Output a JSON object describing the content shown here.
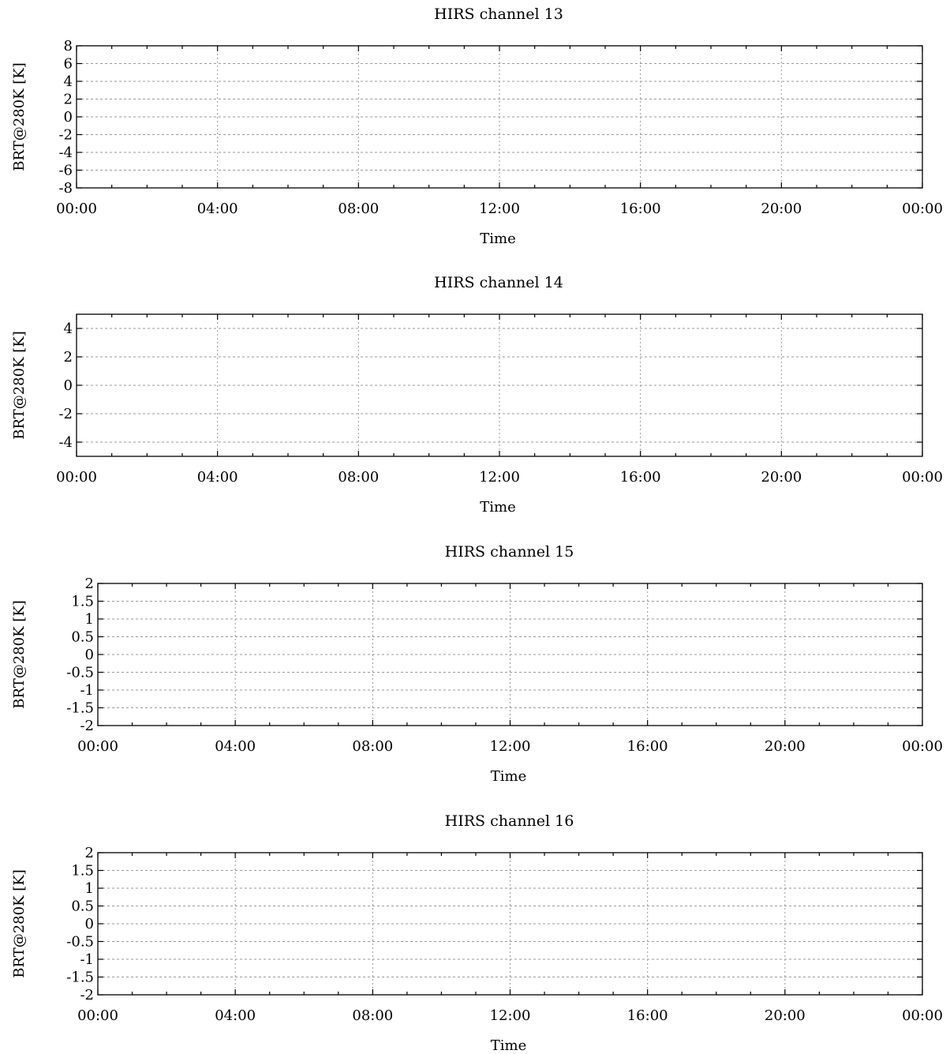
{
  "chart_data": [
    {
      "type": "line",
      "title": "HIRS channel 13",
      "xlabel": "Time",
      "ylabel": "BRT@280K [K]",
      "x_tick_labels": [
        "00:00",
        "04:00",
        "08:00",
        "12:00",
        "16:00",
        "20:00",
        "00:00"
      ],
      "x_minor_per_major": 4,
      "ylim": [
        -8,
        8
      ],
      "y_ticks": [
        8,
        6,
        4,
        2,
        0,
        -2,
        -4,
        -6,
        -8
      ],
      "y_tick_labels": [
        "8",
        "6",
        "4",
        "2",
        "0",
        "-2",
        "-4",
        "-6",
        "-8"
      ],
      "grid": true,
      "series": []
    },
    {
      "type": "line",
      "title": "HIRS channel 14",
      "xlabel": "Time",
      "ylabel": "BRT@280K [K]",
      "x_tick_labels": [
        "00:00",
        "04:00",
        "08:00",
        "12:00",
        "16:00",
        "20:00",
        "00:00"
      ],
      "x_minor_per_major": 4,
      "ylim": [
        -5,
        5
      ],
      "y_ticks": [
        4,
        2,
        0,
        -2,
        -4
      ],
      "y_tick_labels": [
        "4",
        "2",
        "0",
        "-2",
        "-4"
      ],
      "grid": true,
      "series": []
    },
    {
      "type": "line",
      "title": "HIRS channel 15",
      "xlabel": "Time",
      "ylabel": "BRT@280K [K]",
      "x_tick_labels": [
        "00:00",
        "04:00",
        "08:00",
        "12:00",
        "16:00",
        "20:00",
        "00:00"
      ],
      "x_minor_per_major": 4,
      "ylim": [
        -2,
        2
      ],
      "y_ticks": [
        2,
        1.5,
        1,
        0.5,
        0,
        -0.5,
        -1,
        -1.5,
        -2
      ],
      "y_tick_labels": [
        "2",
        "1.5",
        "1",
        "0.5",
        "0",
        "-0.5",
        "-1",
        "-1.5",
        "-2"
      ],
      "grid": true,
      "series": []
    },
    {
      "type": "line",
      "title": "HIRS channel 16",
      "xlabel": "Time",
      "ylabel": "BRT@280K [K]",
      "x_tick_labels": [
        "00:00",
        "04:00",
        "08:00",
        "12:00",
        "16:00",
        "20:00",
        "00:00"
      ],
      "x_minor_per_major": 4,
      "ylim": [
        -2,
        2
      ],
      "y_ticks": [
        2,
        1.5,
        1,
        0.5,
        0,
        -0.5,
        -1,
        -1.5,
        -2
      ],
      "y_tick_labels": [
        "2",
        "1.5",
        "1",
        "0.5",
        "0",
        "-0.5",
        "-1",
        "-1.5",
        "-2"
      ],
      "grid": true,
      "series": []
    }
  ]
}
